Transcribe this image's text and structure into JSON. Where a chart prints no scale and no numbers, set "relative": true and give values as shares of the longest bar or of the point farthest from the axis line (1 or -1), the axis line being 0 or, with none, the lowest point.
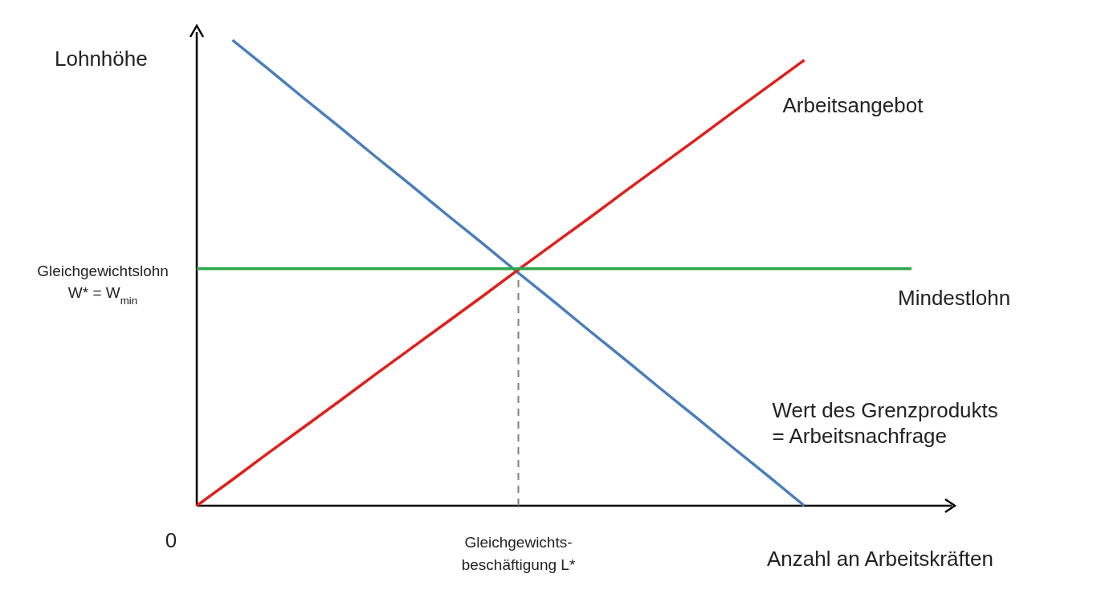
{
  "chart_data": {
    "type": "line",
    "relative": true,
    "xlabel": "Anzahl an Arbeitskräften",
    "ylabel": "Lohnhöhe",
    "categories": [
      null,
      null,
      null,
      null,
      null,
      null,
      null,
      null,
      null,
      null,
      null,
      null,
      null,
      null,
      null,
      null,
      null,
      null,
      null,
      null,
      null
    ],
    "series": [
      {
        "name": "Wert des Grenzprodukts\n= Arbeitsnachfrage",
        "color": "#4a7ebb",
        "values": [
          null,
          1,
          0.938,
          0.875,
          0.813,
          0.75,
          0.688,
          0.625,
          0.563,
          0.5,
          0.438,
          0.375,
          0.313,
          0.25,
          0.188,
          0.125,
          0.063,
          0,
          null,
          null,
          null
        ]
      },
      {
        "name": "Arbeitsangebot",
        "color": "#e0201b",
        "values": [
          0,
          0.056,
          0.113,
          0.169,
          0.225,
          0.282,
          0.338,
          0.394,
          0.45,
          0.507,
          0.563,
          0.619,
          0.676,
          0.732,
          0.788,
          0.845,
          0.901,
          0.957,
          null,
          null,
          null
        ]
      },
      {
        "name": "Mindestlohn",
        "color": "#2ca84a",
        "values": [
          0.509,
          0.509,
          0.509,
          0.509,
          0.509,
          0.509,
          0.509,
          0.509,
          0.509,
          0.509,
          0.509,
          0.509,
          0.509,
          0.509,
          0.509,
          0.509,
          0.509,
          0.509,
          0.509,
          0.509,
          0.509
        ]
      }
    ],
    "annotations": [
      "0",
      "Gleichgewichtslohn\nW* = W$_{min}$",
      "Gleichgewichts-\nbeschäftigung L*"
    ]
  }
}
